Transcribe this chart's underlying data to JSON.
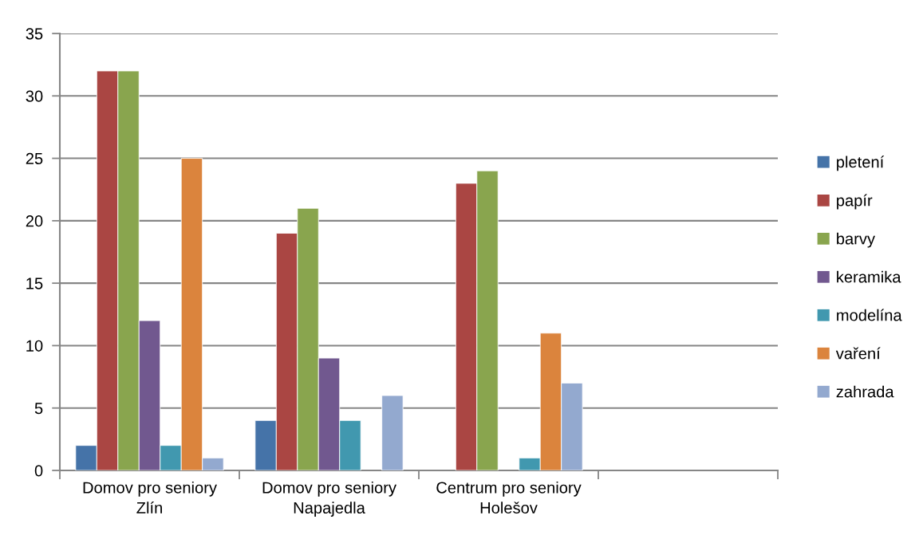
{
  "chart_data": {
    "type": "bar",
    "categories": [
      "Domov pro seniory\nZlín",
      "Domov pro seniory\nNapajedla",
      "Centrum pro seniory\nHolešov",
      null
    ],
    "series": [
      {
        "name": "pletení",
        "color": "#4573a8",
        "values": [
          2,
          4,
          null,
          null
        ]
      },
      {
        "name": "papír",
        "color": "#aa4643",
        "values": [
          32,
          19,
          23,
          null
        ]
      },
      {
        "name": "barvy",
        "color": "#89a54e",
        "values": [
          32,
          21,
          24,
          null
        ]
      },
      {
        "name": "keramika",
        "color": "#71588f",
        "values": [
          12,
          9,
          null,
          null
        ]
      },
      {
        "name": "modelína",
        "color": "#4198af",
        "values": [
          2,
          4,
          1,
          null
        ]
      },
      {
        "name": "vaření",
        "color": "#db843d",
        "values": [
          25,
          null,
          11,
          null
        ]
      },
      {
        "name": "zahrada",
        "color": "#93a9cf",
        "values": [
          1,
          6,
          7,
          null
        ]
      }
    ],
    "ylim": [
      0,
      35
    ],
    "yticks": [
      0,
      5,
      10,
      15,
      20,
      25,
      30,
      35
    ],
    "grid": "y",
    "legend": "right"
  }
}
